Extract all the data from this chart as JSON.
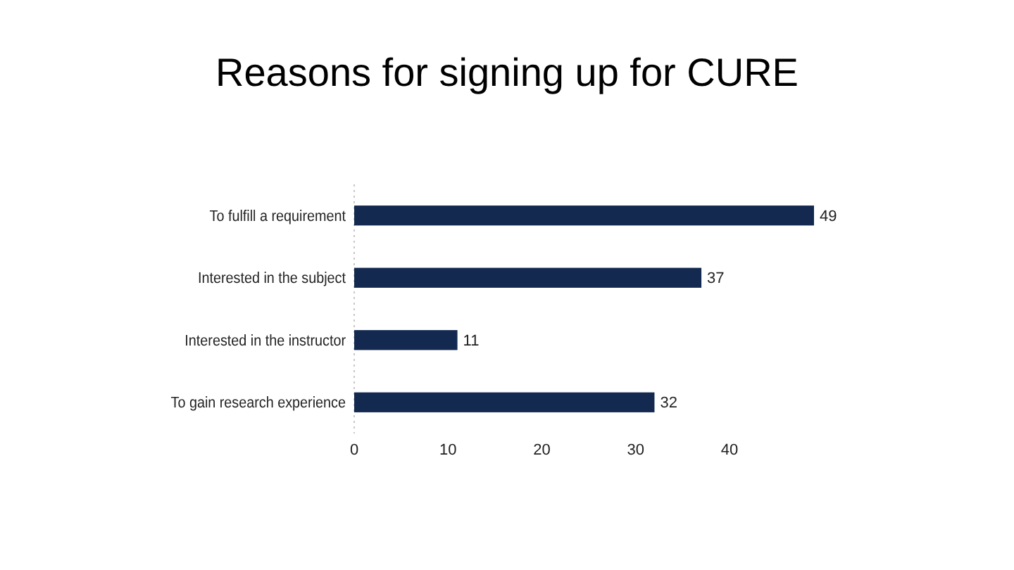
{
  "chart_data": {
    "type": "bar",
    "orientation": "horizontal",
    "title": "Reasons for signing up for CURE",
    "categories": [
      "To fulfill a requirement",
      "Interested in the subject",
      "Interested in the instructor",
      "To gain research experience"
    ],
    "values": [
      49,
      37,
      11,
      32
    ],
    "color": "#13294f",
    "data_labels": true,
    "xlim": [
      0,
      49
    ],
    "xticks": [
      0,
      10,
      20,
      30,
      40
    ],
    "grid": false
  }
}
